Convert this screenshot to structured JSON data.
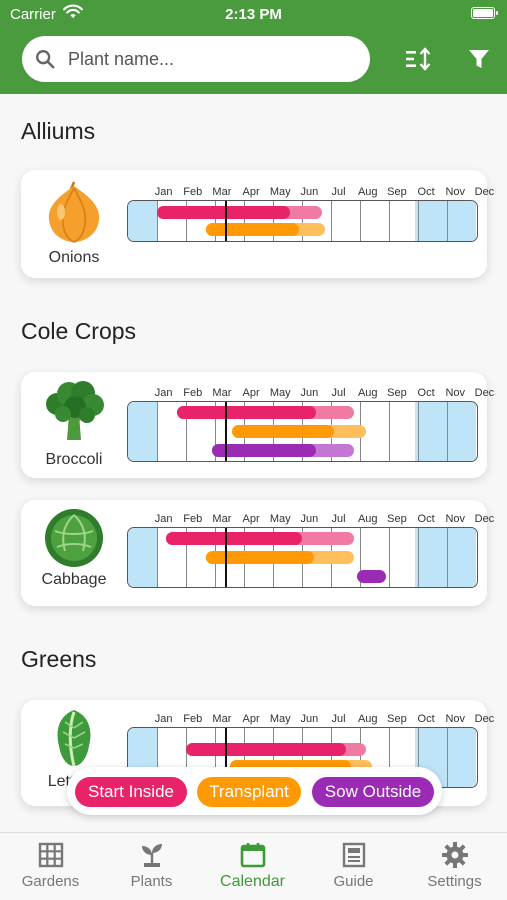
{
  "status_bar": {
    "carrier": "Carrier",
    "time": "2:13 PM"
  },
  "search": {
    "placeholder": "Plant name..."
  },
  "months": [
    "Jan",
    "Feb",
    "Mar",
    "Apr",
    "May",
    "Jun",
    "Jul",
    "Aug",
    "Sep",
    "Oct",
    "Nov",
    "Dec"
  ],
  "current_month_fraction": 3.33,
  "colors": {
    "brand": "#4a9a3e",
    "start_inside": "#e8236a",
    "transplant": "#ff9a06",
    "sow_outside": "#9b2bb4",
    "frost": "#bfe3f7"
  },
  "sections": [
    {
      "title": "Alliums",
      "plants": [
        {
          "name": "Onions",
          "icon": "onion-icon",
          "frost": [
            [
              0,
              1.0
            ],
            [
              9.9,
              12
            ]
          ],
          "bars": [
            {
              "type": "start_inside",
              "start": 1.0,
              "end": 5.6,
              "light_end": 6.7
            },
            {
              "type": "transplant",
              "start": 2.7,
              "end": 5.9,
              "light_end": 6.8
            }
          ]
        }
      ]
    },
    {
      "title": "Cole Crops",
      "plants": [
        {
          "name": "Broccoli",
          "icon": "broccoli-icon",
          "frost": [
            [
              0,
              1.0
            ],
            [
              9.9,
              12
            ]
          ],
          "bars": [
            {
              "type": "start_inside",
              "start": 1.7,
              "end": 6.5,
              "light_end": 7.8
            },
            {
              "type": "transplant",
              "start": 3.6,
              "end": 7.1,
              "light_end": 8.2
            },
            {
              "type": "sow_outside",
              "start": 2.9,
              "end": 6.5,
              "light_end": 7.8
            }
          ]
        },
        {
          "name": "Cabbage",
          "icon": "cabbage-icon",
          "frost": [
            [
              0,
              1.0
            ],
            [
              9.9,
              12
            ]
          ],
          "bars": [
            {
              "type": "start_inside",
              "start": 1.3,
              "end": 6.0,
              "light_end": 7.8
            },
            {
              "type": "transplant",
              "start": 2.7,
              "end": 6.4,
              "light_end": 7.8
            },
            {
              "type": "sow_outside",
              "start": 7.9,
              "end": 8.9,
              "light_end": 8.9
            }
          ]
        }
      ]
    },
    {
      "title": "Greens",
      "plants": [
        {
          "name": "Lettuce",
          "icon": "lettuce-icon",
          "frost": [
            [
              0,
              1.0
            ],
            [
              9.9,
              12
            ]
          ],
          "bars": [
            {
              "type": "start_inside",
              "start": 2.0,
              "end": 7.5,
              "light_end": 8.2
            },
            {
              "type": "transplant",
              "start": 3.5,
              "end": 7.7,
              "light_end": 8.4
            }
          ]
        }
      ]
    }
  ],
  "legend": [
    {
      "label": "Start Inside"
    },
    {
      "label": "Transplant"
    },
    {
      "label": "Sow Outside"
    }
  ],
  "tabs": [
    {
      "label": "Gardens",
      "icon": "grid-icon"
    },
    {
      "label": "Plants",
      "icon": "sprout-icon"
    },
    {
      "label": "Calendar",
      "icon": "calendar-icon",
      "active": true
    },
    {
      "label": "Guide",
      "icon": "guide-icon"
    },
    {
      "label": "Settings",
      "icon": "gear-icon"
    }
  ]
}
